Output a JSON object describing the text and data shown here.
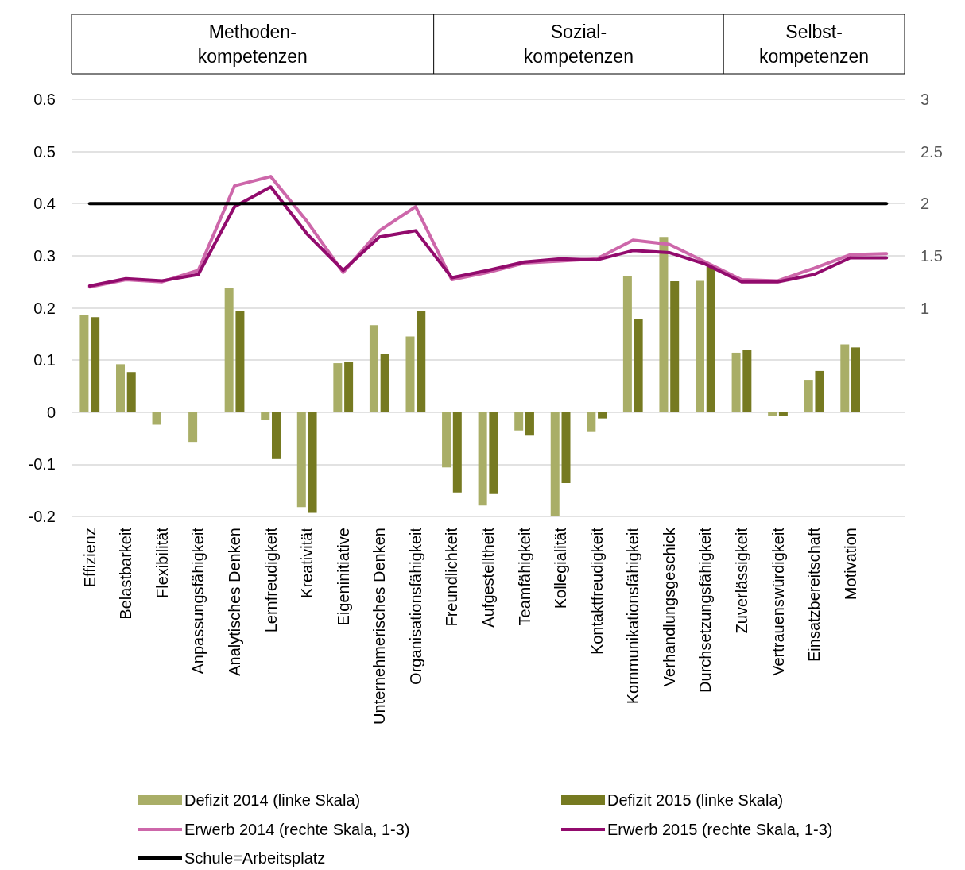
{
  "chart_data": {
    "type": "bar",
    "annotations": [
      "Methoden-\nkompetenzen",
      "Sozial-\nkompetenzen",
      "Selbst-\nkompetenzen"
    ],
    "categories": [
      "Effizienz",
      "Belastbarkeit",
      "Flexibilität",
      "Anpassungsfähigkeit",
      "Analytisches Denken",
      "Lernfreudigkeit",
      "Kreativität",
      "Eigeninitiative",
      "Unternehmerisches Denken",
      "Organisationsfähigkeit",
      "Freundlichkeit",
      "Aufgestelltheit",
      "Teamfähigkeit",
      "Kollegialität",
      "Kontaktfreudigkeit",
      "Kommunikationsfähigkeit",
      "Verhandlungsgeschick",
      "Durchsetzungsfähigkeit",
      "Zuverlässigkeit",
      "Vertrauenswürdigkeit",
      "Einsatzbereitschaft",
      "Motivation",
      null
    ],
    "series": [
      {
        "name": "Defizit 2014 (linke Skala)",
        "color": "#a9ae67",
        "values": [
          0.186,
          0.092,
          -0.024,
          -0.057,
          0.238,
          -0.015,
          -0.182,
          0.094,
          0.167,
          0.145,
          -0.106,
          -0.179,
          -0.035,
          -0.2,
          -0.038,
          0.261,
          0.336,
          0.252,
          0.114,
          -0.008,
          0.062,
          0.13,
          null
        ]
      },
      {
        "name": "Defizit 2015 (linke Skala)",
        "color": "#767a21",
        "values": [
          0.182,
          0.077,
          null,
          null,
          0.193,
          -0.09,
          -0.193,
          0.096,
          0.112,
          0.194,
          -0.154,
          -0.157,
          -0.045,
          -0.136,
          -0.012,
          0.179,
          0.251,
          0.279,
          0.119,
          -0.007,
          0.079,
          0.124,
          null
        ]
      },
      {
        "name": "Erwerb 2014 (rechte Skala, 1-3)",
        "type": "line",
        "axis": "y2",
        "color": "#cd67aa",
        "values": [
          1.2,
          1.27,
          1.25,
          1.36,
          2.17,
          2.26,
          1.83,
          1.34,
          1.74,
          1.97,
          1.27,
          1.34,
          1.43,
          1.45,
          1.47,
          1.65,
          1.61,
          1.44,
          1.27,
          1.26,
          1.38,
          1.51,
          1.52
        ]
      },
      {
        "name": "Erwerb 2015 (rechte Skala, 1-3)",
        "type": "line",
        "axis": "y2",
        "color": "#920b6d",
        "values": [
          1.21,
          1.28,
          1.26,
          1.32,
          1.97,
          2.16,
          1.71,
          1.36,
          1.68,
          1.74,
          1.29,
          1.36,
          1.44,
          1.47,
          1.46,
          1.55,
          1.53,
          1.42,
          1.25,
          1.25,
          1.32,
          1.48,
          1.48
        ]
      },
      {
        "name": "Schule=Arbeitsplatz",
        "type": "line",
        "axis": "y2",
        "color": "#000000",
        "values": [
          2,
          2,
          2,
          2,
          2,
          2,
          2,
          2,
          2,
          2,
          2,
          2,
          2,
          2,
          2,
          2,
          2,
          2,
          2,
          2,
          2,
          2,
          2
        ]
      }
    ],
    "ylim": [
      -0.2,
      0.6
    ],
    "yticks": [
      -0.2,
      -0.1,
      0,
      0.1,
      0.2,
      0.3,
      0.4,
      0.5,
      0.6
    ],
    "y2lim": [
      -1,
      3
    ],
    "y2ticks": [
      1,
      1.5,
      2,
      2.5,
      3
    ],
    "grid": "y",
    "legend": "bottom",
    "marker": "none"
  }
}
